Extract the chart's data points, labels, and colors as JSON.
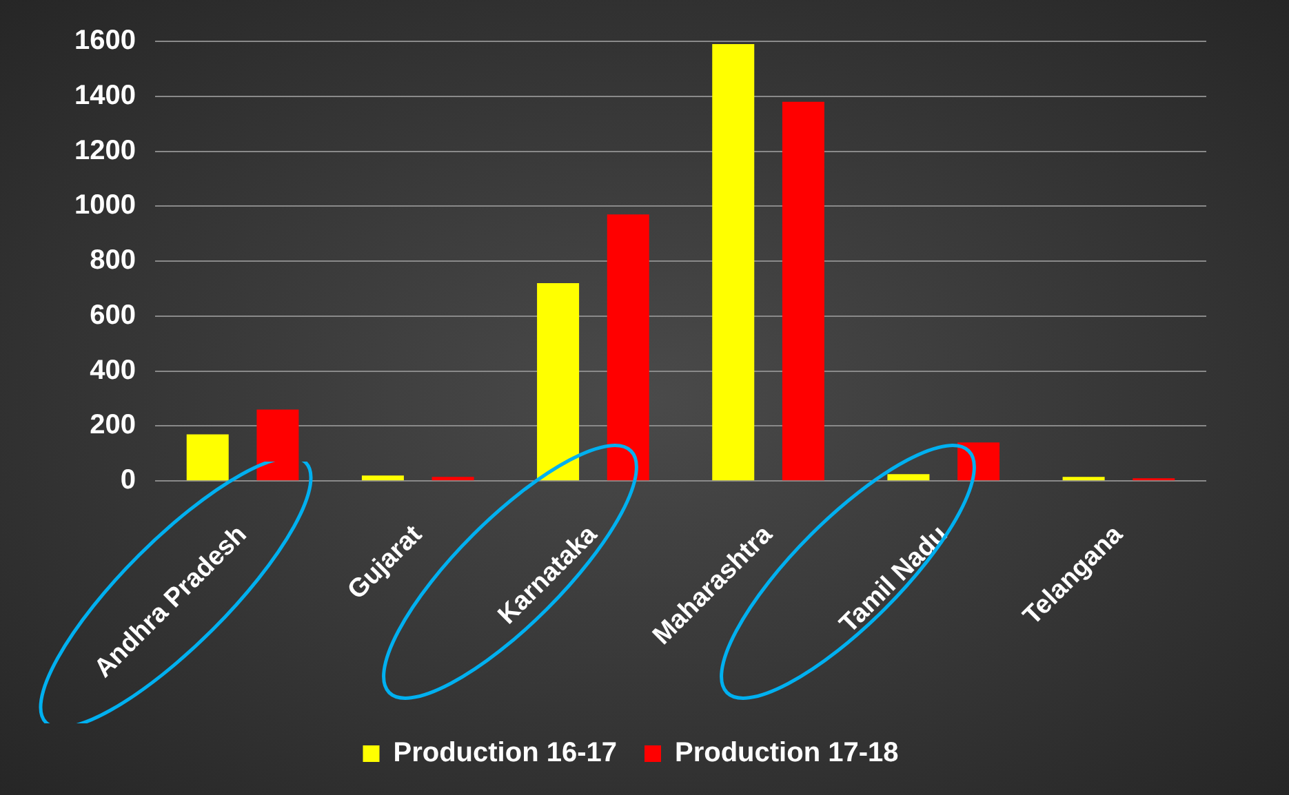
{
  "chart_data": {
    "type": "bar",
    "categories": [
      "Andhra Pradesh",
      "Gujarat",
      "Karnataka",
      "Maharashtra",
      "Tamil Nadu",
      "Telangana"
    ],
    "series": [
      {
        "name": "Production 16-17",
        "color": "#ffff00",
        "values": [
          170,
          20,
          720,
          1590,
          25,
          15
        ]
      },
      {
        "name": "Production 17-18",
        "color": "#ff0000",
        "values": [
          260,
          15,
          970,
          1380,
          140,
          10
        ]
      }
    ],
    "ylim": [
      0,
      1600
    ],
    "yticks": [
      0,
      200,
      400,
      600,
      800,
      1000,
      1200,
      1400,
      1600
    ],
    "grid": "y",
    "legend": "bottom"
  }
}
